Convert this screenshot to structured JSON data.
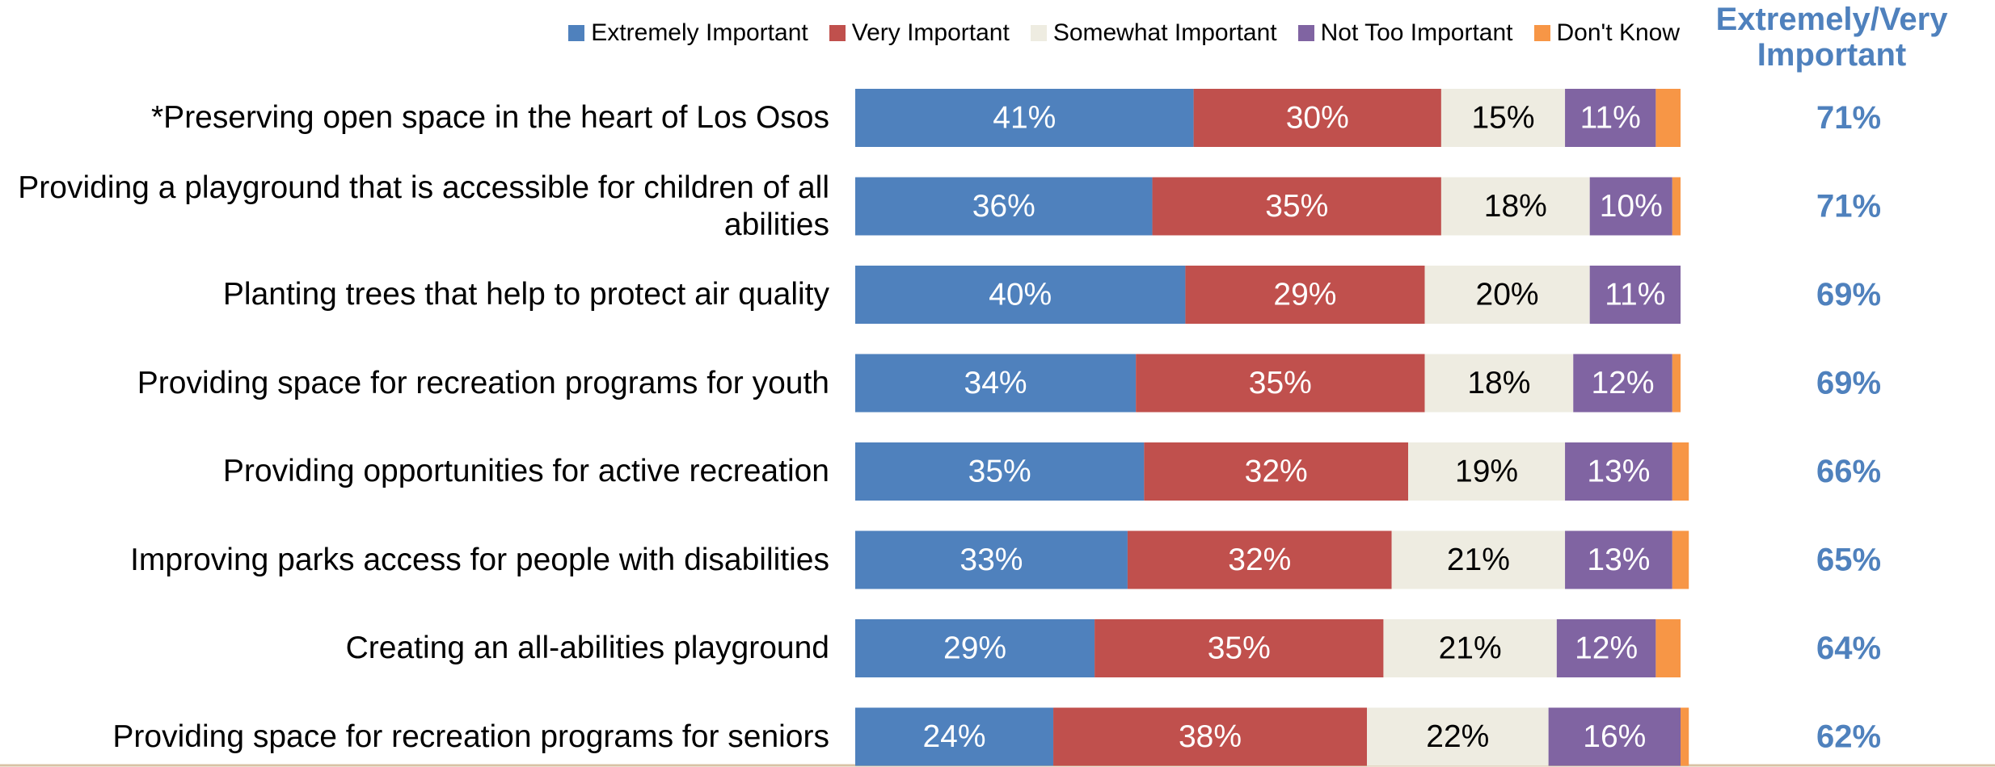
{
  "chart_data": {
    "type": "stacked-bar-horizontal",
    "categories": [
      "*Preserving open space in the heart of Los Osos",
      "Providing a playground that is accessible for children of all abilities",
      "Planting trees that help to protect air quality",
      "Providing space for recreation programs for youth",
      "Providing opportunities for active recreation",
      "Improving parks access for people with disabilities",
      "Creating an all-abilities playground",
      "Providing space for recreation programs for seniors"
    ],
    "series": [
      {
        "name": "Extremely Important",
        "color": "#4f81bd",
        "values": [
          41,
          36,
          40,
          34,
          35,
          33,
          29,
          24
        ],
        "value_labels": [
          "41%",
          "36%",
          "40%",
          "34%",
          "35%",
          "33%",
          "29%",
          "24%"
        ]
      },
      {
        "name": "Very Important",
        "color": "#c0504d",
        "values": [
          30,
          35,
          29,
          35,
          32,
          32,
          35,
          38
        ],
        "value_labels": [
          "30%",
          "35%",
          "29%",
          "35%",
          "32%",
          "32%",
          "35%",
          "38%"
        ]
      },
      {
        "name": "Somewhat Important",
        "color": "#eeece1",
        "values": [
          15,
          18,
          20,
          18,
          19,
          21,
          21,
          22
        ],
        "value_labels": [
          "15%",
          "18%",
          "20%",
          "18%",
          "19%",
          "21%",
          "21%",
          "22%"
        ]
      },
      {
        "name": "Not Too Important",
        "color": "#8064a2",
        "values": [
          11,
          10,
          11,
          12,
          13,
          13,
          12,
          16
        ],
        "value_labels": [
          "11%",
          "10%",
          "11%",
          "12%",
          "13%",
          "13%",
          "12%",
          "16%"
        ]
      },
      {
        "name": "Don't Know",
        "color": "#f79646",
        "values": [
          3,
          1,
          0,
          1,
          2,
          2,
          3,
          1
        ]
      }
    ],
    "xlim": [
      0,
      100
    ],
    "totals": {
      "title": "Extremely/Very Important",
      "color": "#4f81bd",
      "values": [
        71,
        71,
        69,
        69,
        66,
        65,
        64,
        62
      ],
      "value_labels": [
        "71%",
        "71%",
        "69%",
        "69%",
        "66%",
        "65%",
        "64%",
        "62%"
      ]
    }
  }
}
